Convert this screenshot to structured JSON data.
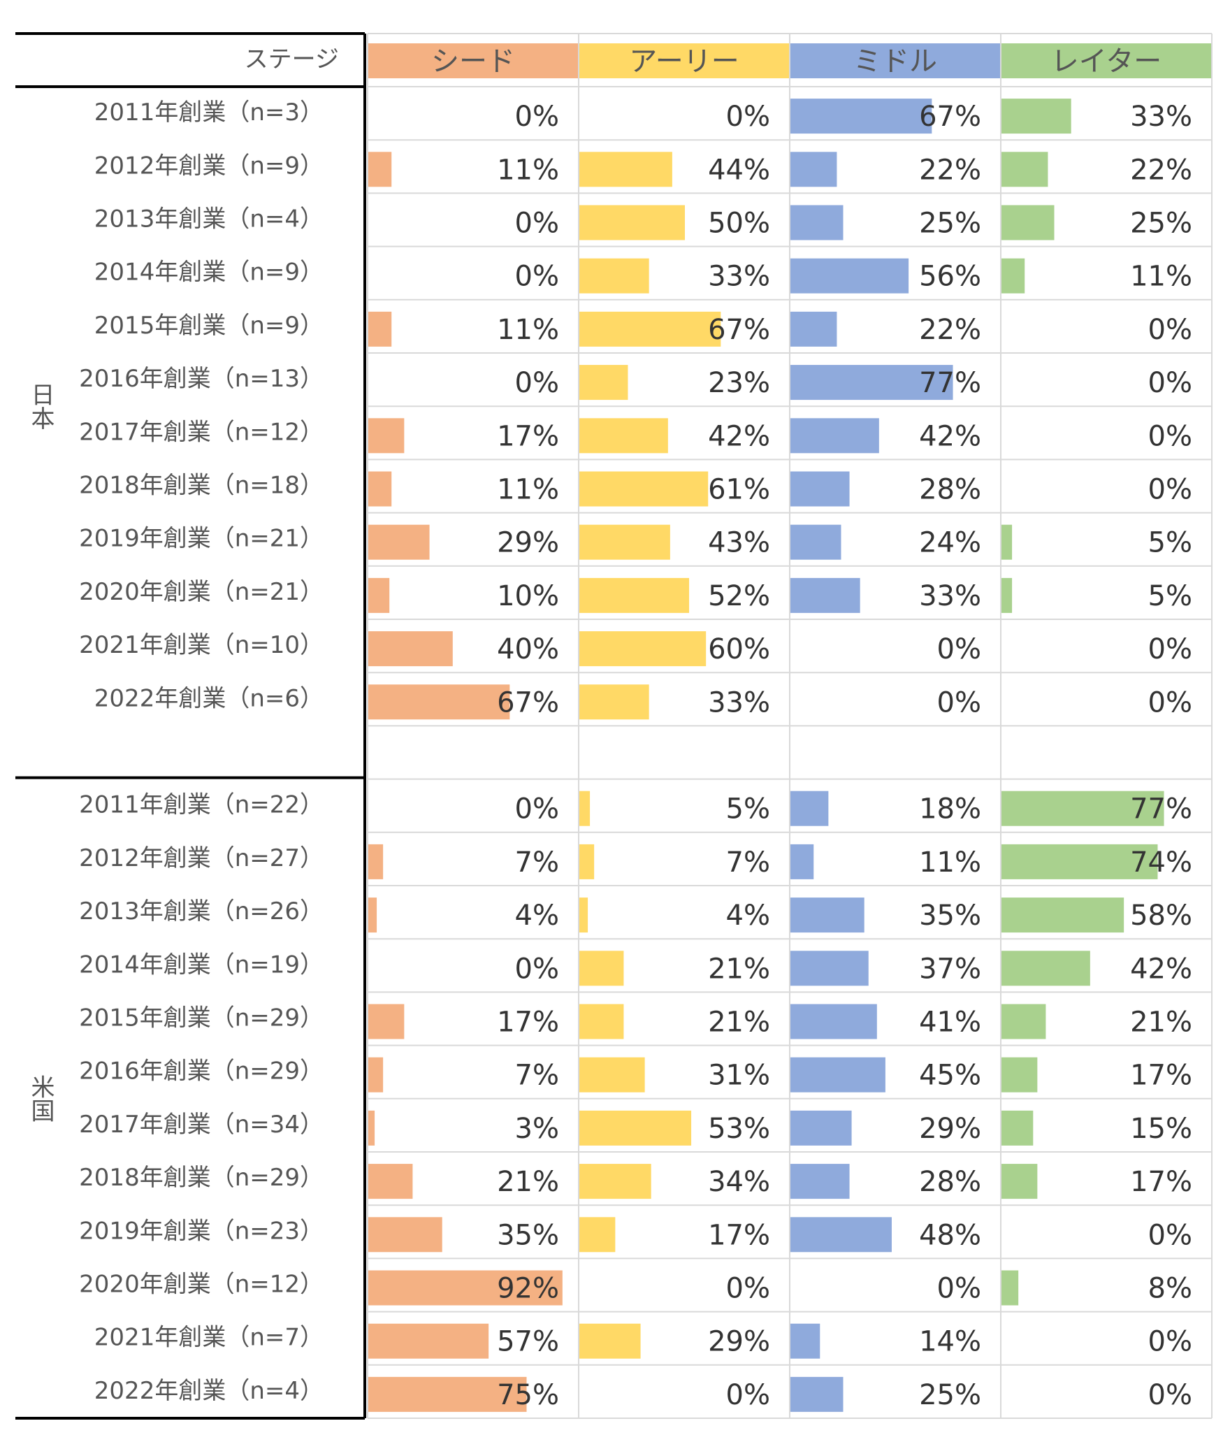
{
  "chart_data": {
    "type": "table",
    "stage_header": "ステージ",
    "stages": [
      "シード",
      "アーリー",
      "ミドル",
      "レイター"
    ],
    "stage_colors": [
      "#F4B183",
      "#FFD966",
      "#8FAADC",
      "#A9D18E"
    ],
    "groups": [
      {
        "name": "日本",
        "rows": [
          {
            "label": "2011年創業（n=3）",
            "values": [
              0,
              0,
              67,
              33
            ]
          },
          {
            "label": "2012年創業（n=9）",
            "values": [
              11,
              44,
              22,
              22
            ]
          },
          {
            "label": "2013年創業（n=4）",
            "values": [
              0,
              50,
              25,
              25
            ]
          },
          {
            "label": "2014年創業（n=9）",
            "values": [
              0,
              33,
              56,
              11
            ]
          },
          {
            "label": "2015年創業（n=9）",
            "values": [
              11,
              67,
              22,
              0
            ]
          },
          {
            "label": "2016年創業（n=13）",
            "values": [
              0,
              23,
              77,
              0
            ]
          },
          {
            "label": "2017年創業（n=12）",
            "values": [
              17,
              42,
              42,
              0
            ]
          },
          {
            "label": "2018年創業（n=18）",
            "values": [
              11,
              61,
              28,
              0
            ]
          },
          {
            "label": "2019年創業（n=21）",
            "values": [
              29,
              43,
              24,
              5
            ]
          },
          {
            "label": "2020年創業（n=21）",
            "values": [
              10,
              52,
              33,
              5
            ]
          },
          {
            "label": "2021年創業（n=10）",
            "values": [
              40,
              60,
              0,
              0
            ]
          },
          {
            "label": "2022年創業（n=6）",
            "values": [
              67,
              33,
              0,
              0
            ]
          }
        ]
      },
      {
        "name": "米国",
        "rows": [
          {
            "label": "2011年創業（n=22）",
            "values": [
              0,
              5,
              18,
              77
            ]
          },
          {
            "label": "2012年創業（n=27）",
            "values": [
              7,
              7,
              11,
              74
            ]
          },
          {
            "label": "2013年創業（n=26）",
            "values": [
              4,
              4,
              35,
              58
            ]
          },
          {
            "label": "2014年創業（n=19）",
            "values": [
              0,
              21,
              37,
              42
            ]
          },
          {
            "label": "2015年創業（n=29）",
            "values": [
              17,
              21,
              41,
              21
            ]
          },
          {
            "label": "2016年創業（n=29）",
            "values": [
              7,
              31,
              45,
              17
            ]
          },
          {
            "label": "2017年創業（n=34）",
            "values": [
              3,
              53,
              29,
              15
            ]
          },
          {
            "label": "2018年創業（n=29）",
            "values": [
              21,
              34,
              28,
              17
            ]
          },
          {
            "label": "2019年創業（n=23）",
            "values": [
              35,
              17,
              48,
              0
            ]
          },
          {
            "label": "2020年創業（n=12）",
            "values": [
              92,
              0,
              0,
              8
            ]
          },
          {
            "label": "2021年創業（n=7）",
            "values": [
              57,
              29,
              14,
              0
            ]
          },
          {
            "label": "2022年創業（n=4）",
            "values": [
              75,
              0,
              25,
              0
            ]
          }
        ]
      }
    ],
    "value_suffix": "%",
    "bar_scale_max": 100
  }
}
